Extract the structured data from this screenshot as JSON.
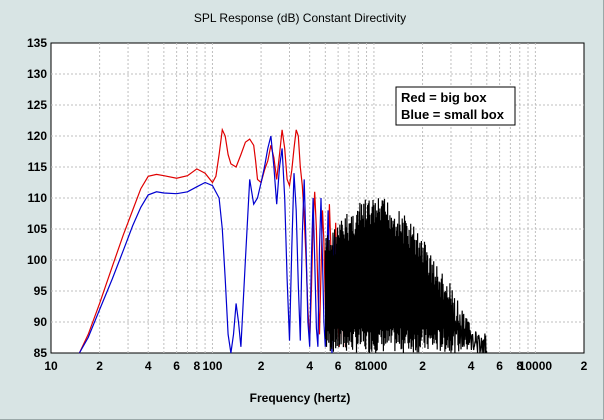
{
  "chart_data": {
    "type": "line",
    "title": "SPL Response (dB)   Constant Directivity",
    "xlabel": "Frequency (hertz)",
    "ylabel": "",
    "x_scale": "log",
    "xlim": [
      10,
      20000
    ],
    "ylim": [
      85,
      135
    ],
    "y_ticks": [
      85,
      90,
      95,
      100,
      105,
      110,
      115,
      120,
      125,
      130,
      135
    ],
    "x_ticks": [
      {
        "value": 10,
        "label": "10"
      },
      {
        "value": 20,
        "label": "2"
      },
      {
        "value": 40,
        "label": "4"
      },
      {
        "value": 60,
        "label": "6"
      },
      {
        "value": 80,
        "label": "8"
      },
      {
        "value": 100,
        "label": "100"
      },
      {
        "value": 200,
        "label": "2"
      },
      {
        "value": 400,
        "label": "4"
      },
      {
        "value": 600,
        "label": "6"
      },
      {
        "value": 800,
        "label": "8"
      },
      {
        "value": 1000,
        "label": "1000"
      },
      {
        "value": 2000,
        "label": "2"
      },
      {
        "value": 4000,
        "label": "4"
      },
      {
        "value": 6000,
        "label": "6"
      },
      {
        "value": 8000,
        "label": "8"
      },
      {
        "value": 10000,
        "label": "10000"
      },
      {
        "value": 20000,
        "label": "2"
      }
    ],
    "grid": true,
    "legend": {
      "placement": "top-right",
      "lines": [
        "Red = big box",
        "Blue = small box"
      ]
    },
    "series": [
      {
        "color": "#e00000",
        "x": [
          15,
          17,
          20,
          24,
          28,
          32,
          36,
          40,
          45,
          50,
          60,
          70,
          80,
          90,
          100,
          105,
          110,
          115,
          120,
          125,
          130,
          140,
          150,
          160,
          170,
          180,
          185,
          190,
          200,
          210,
          220,
          230,
          240,
          250,
          260,
          270,
          280,
          290,
          300,
          310,
          320,
          330,
          340,
          350,
          360,
          370,
          380,
          390,
          400,
          410,
          420,
          430,
          440,
          450,
          460,
          470,
          480,
          490,
          500,
          510,
          520,
          530,
          540,
          550,
          560,
          570,
          580,
          590,
          600,
          610,
          620,
          630,
          640,
          650
        ],
        "y": [
          85,
          88,
          93,
          99,
          104,
          108,
          111.5,
          113.5,
          113.8,
          113.6,
          113.2,
          113.6,
          114.7,
          114,
          112.5,
          113.5,
          117,
          121,
          120,
          117,
          115.5,
          115,
          117,
          119,
          119.5,
          118.5,
          116,
          113,
          112.5,
          114.5,
          116,
          118.5,
          116.5,
          113,
          117,
          121,
          118,
          113,
          112,
          114.5,
          118,
          121,
          120,
          115,
          112,
          107,
          100,
          92,
          87,
          95,
          106,
          111,
          105,
          95,
          88,
          98,
          108,
          103,
          93,
          87,
          99,
          109,
          103,
          94,
          88,
          100,
          106,
          98,
          90,
          86,
          96,
          103,
          93,
          86
        ]
      },
      {
        "color": "#0000d0",
        "x": [
          15,
          17,
          20,
          24,
          28,
          32,
          36,
          40,
          45,
          50,
          60,
          70,
          80,
          90,
          100,
          110,
          115,
          120,
          125,
          130,
          135,
          140,
          145,
          150,
          160,
          170,
          180,
          190,
          200,
          210,
          220,
          230,
          240,
          250,
          260,
          270,
          280,
          290,
          300,
          310,
          320,
          330,
          340,
          350,
          360,
          370,
          380,
          390,
          400,
          410,
          420,
          430,
          440,
          450,
          460,
          470,
          480,
          490,
          500,
          510,
          520,
          530,
          540,
          550,
          560,
          570,
          580
        ],
        "y": [
          85,
          87.5,
          92,
          97,
          101.5,
          105.5,
          108.5,
          110.5,
          111,
          110.8,
          110.7,
          111,
          111.8,
          112.5,
          112,
          110,
          105,
          97,
          88,
          85,
          88,
          93,
          90,
          86,
          100,
          113,
          109,
          110,
          112.5,
          115,
          118,
          120,
          115,
          109,
          115,
          118,
          110,
          97,
          87,
          102,
          114,
          108,
          96,
          87,
          104,
          113,
          102,
          90,
          86,
          100,
          110,
          100,
          89,
          86,
          102,
          110,
          100,
          90,
          86,
          99,
          108,
          98,
          88,
          85,
          98,
          104,
          92
        ]
      },
      {
        "color": "#000000",
        "generated": "dense oscillation",
        "x_range": [
          500,
          5000
        ],
        "envelope_peaks": [
          {
            "x": 500,
            "y": 104
          },
          {
            "x": 700,
            "y": 108
          },
          {
            "x": 900,
            "y": 110
          },
          {
            "x": 1200,
            "y": 110
          },
          {
            "x": 1600,
            "y": 107
          },
          {
            "x": 2000,
            "y": 104
          },
          {
            "x": 2500,
            "y": 99
          },
          {
            "x": 3000,
            "y": 96
          },
          {
            "x": 3500,
            "y": 92
          },
          {
            "x": 4000,
            "y": 90
          },
          {
            "x": 4500,
            "y": 88
          },
          {
            "x": 5000,
            "y": 86
          }
        ],
        "floor": 85
      }
    ]
  }
}
